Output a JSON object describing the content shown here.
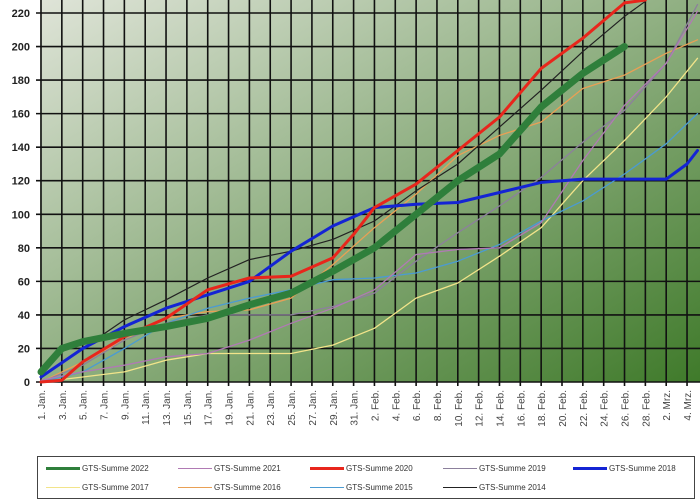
{
  "chart_data": {
    "type": "line",
    "title": "",
    "xlabel": "",
    "ylabel": "",
    "ylim": [
      0,
      220
    ],
    "y_ticks": [
      0,
      20,
      40,
      60,
      80,
      100,
      120,
      140,
      160,
      180,
      200,
      220
    ],
    "x_range": [
      "01-01",
      "03-05"
    ],
    "x_tick_labels": [
      "1. Jan.",
      "3. Jan.",
      "5. Jan.",
      "7. Jan.",
      "9. Jan.",
      "11. Jan.",
      "13. Jan.",
      "15. Jan.",
      "17. Jan.",
      "19. Jan.",
      "21. Jan.",
      "23. Jan.",
      "25. Jan.",
      "27. Jan.",
      "29. Jan.",
      "31. Jan.",
      "2. Feb.",
      "4. Feb.",
      "6. Feb.",
      "8. Feb.",
      "10. Feb.",
      "12. Feb.",
      "14. Feb.",
      "16. Feb.",
      "18. Feb.",
      "20. Feb.",
      "22. Feb.",
      "24. Feb.",
      "26. Feb.",
      "28. Feb.",
      "2. Mrz.",
      "4. Mrz."
    ],
    "grid": true,
    "background": [
      "#dfe4d8",
      "#3f7a2a"
    ],
    "legend_position": "bottom",
    "series": [
      {
        "name": "GTS-Summe 2022",
        "color": "#2f7f3b",
        "points": [
          [
            "01-01",
            6
          ],
          [
            "01-03",
            20
          ],
          [
            "01-05",
            24
          ],
          [
            "01-09",
            29
          ],
          [
            "01-13",
            33
          ],
          [
            "01-17",
            38
          ],
          [
            "01-21",
            46
          ],
          [
            "01-25",
            53
          ],
          [
            "01-29",
            66
          ],
          [
            "02-02",
            80
          ],
          [
            "02-06",
            100
          ],
          [
            "02-10",
            120
          ],
          [
            "02-14",
            136
          ],
          [
            "02-18",
            164
          ],
          [
            "02-22",
            184
          ],
          [
            "02-26",
            200
          ]
        ]
      },
      {
        "name": "GTS-Summe 2021",
        "color": "#b07ab4",
        "points": [
          [
            "01-01",
            1
          ],
          [
            "01-05",
            6
          ],
          [
            "01-09",
            10
          ],
          [
            "01-13",
            15
          ],
          [
            "01-17",
            17
          ],
          [
            "01-21",
            25
          ],
          [
            "01-25",
            35
          ],
          [
            "01-29",
            44
          ],
          [
            "02-02",
            55
          ],
          [
            "02-06",
            76
          ],
          [
            "02-10",
            79
          ],
          [
            "02-14",
            80
          ],
          [
            "02-18",
            95
          ],
          [
            "02-22",
            132
          ],
          [
            "02-26",
            165
          ],
          [
            "03-02",
            190
          ],
          [
            "03-05",
            221
          ]
        ]
      },
      {
        "name": "GTS-Summe 2020",
        "color": "#e8261c",
        "points": [
          [
            "01-01",
            0
          ],
          [
            "01-03",
            1
          ],
          [
            "01-05",
            12
          ],
          [
            "01-09",
            27
          ],
          [
            "01-13",
            38
          ],
          [
            "01-17",
            55
          ],
          [
            "01-21",
            62
          ],
          [
            "01-25",
            63
          ],
          [
            "01-29",
            74
          ],
          [
            "01-31",
            88
          ],
          [
            "02-02",
            104
          ],
          [
            "02-06",
            118
          ],
          [
            "02-10",
            138
          ],
          [
            "02-14",
            158
          ],
          [
            "02-18",
            187
          ],
          [
            "02-22",
            205
          ],
          [
            "02-26",
            226
          ],
          [
            "02-28",
            228
          ]
        ]
      },
      {
        "name": "GTS-Summe 2019",
        "color": "#8c809c",
        "points": [
          [
            "01-01",
            0
          ],
          [
            "01-05",
            10
          ],
          [
            "01-09",
            25
          ],
          [
            "01-13",
            35
          ],
          [
            "01-17",
            40
          ],
          [
            "01-21",
            40
          ],
          [
            "01-25",
            40
          ],
          [
            "01-29",
            45
          ],
          [
            "02-02",
            53
          ],
          [
            "02-06",
            72
          ],
          [
            "02-10",
            89
          ],
          [
            "02-14",
            105
          ],
          [
            "02-18",
            122
          ],
          [
            "02-22",
            143
          ],
          [
            "02-26",
            162
          ],
          [
            "03-02",
            190
          ],
          [
            "03-05",
            225
          ]
        ]
      },
      {
        "name": "GTS-Summe 2018",
        "color": "#1424d4",
        "points": [
          [
            "01-01",
            3
          ],
          [
            "01-05",
            20
          ],
          [
            "01-09",
            33
          ],
          [
            "01-13",
            44
          ],
          [
            "01-17",
            52
          ],
          [
            "01-21",
            60
          ],
          [
            "01-25",
            78
          ],
          [
            "01-29",
            93
          ],
          [
            "02-02",
            104
          ],
          [
            "02-06",
            106
          ],
          [
            "02-10",
            107
          ],
          [
            "02-14",
            113
          ],
          [
            "02-18",
            119
          ],
          [
            "02-22",
            121
          ],
          [
            "02-26",
            121
          ],
          [
            "03-02",
            121
          ],
          [
            "03-04",
            130
          ],
          [
            "03-05",
            138
          ]
        ]
      },
      {
        "name": "GTS-Summe 2017",
        "color": "#f2e48a",
        "points": [
          [
            "01-01",
            0
          ],
          [
            "01-05",
            3
          ],
          [
            "01-09",
            6
          ],
          [
            "01-13",
            13
          ],
          [
            "01-17",
            17
          ],
          [
            "01-21",
            17
          ],
          [
            "01-25",
            17
          ],
          [
            "01-29",
            22
          ],
          [
            "02-02",
            32
          ],
          [
            "02-06",
            50
          ],
          [
            "02-10",
            59
          ],
          [
            "02-14",
            75
          ],
          [
            "02-18",
            92
          ],
          [
            "02-22",
            120
          ],
          [
            "02-26",
            144
          ],
          [
            "03-02",
            170
          ],
          [
            "03-05",
            193
          ]
        ]
      },
      {
        "name": "GTS-Summe 2016",
        "color": "#e9a055",
        "points": [
          [
            "01-01",
            0
          ],
          [
            "01-05",
            12
          ],
          [
            "01-09",
            25
          ],
          [
            "01-13",
            38
          ],
          [
            "01-17",
            42
          ],
          [
            "01-21",
            43
          ],
          [
            "01-25",
            50
          ],
          [
            "01-29",
            70
          ],
          [
            "02-02",
            92
          ],
          [
            "02-06",
            112
          ],
          [
            "02-10",
            135
          ],
          [
            "02-14",
            147
          ],
          [
            "02-18",
            155
          ],
          [
            "02-22",
            175
          ],
          [
            "02-26",
            183
          ],
          [
            "03-02",
            196
          ],
          [
            "03-05",
            204
          ]
        ]
      },
      {
        "name": "GTS-Summe 2015",
        "color": "#4b9bd2",
        "points": [
          [
            "01-01",
            0
          ],
          [
            "01-05",
            6
          ],
          [
            "01-09",
            20
          ],
          [
            "01-13",
            35
          ],
          [
            "01-17",
            44
          ],
          [
            "01-21",
            50
          ],
          [
            "01-25",
            55
          ],
          [
            "01-29",
            61
          ],
          [
            "02-02",
            62
          ],
          [
            "02-06",
            65
          ],
          [
            "02-10",
            72
          ],
          [
            "02-14",
            82
          ],
          [
            "02-18",
            96
          ],
          [
            "02-22",
            108
          ],
          [
            "02-26",
            124
          ],
          [
            "03-02",
            142
          ],
          [
            "03-05",
            160
          ]
        ]
      },
      {
        "name": "GTS-Summe 2014",
        "color": "#222222",
        "points": [
          [
            "01-01",
            3
          ],
          [
            "01-05",
            20
          ],
          [
            "01-09",
            37
          ],
          [
            "01-13",
            49
          ],
          [
            "01-17",
            62
          ],
          [
            "01-21",
            73
          ],
          [
            "01-25",
            78
          ],
          [
            "01-29",
            85
          ],
          [
            "02-02",
            96
          ],
          [
            "02-06",
            114
          ],
          [
            "02-10",
            130
          ],
          [
            "02-14",
            152
          ],
          [
            "02-18",
            174
          ],
          [
            "02-22",
            197
          ],
          [
            "02-26",
            218
          ],
          [
            "02-28",
            227
          ]
        ]
      }
    ]
  }
}
